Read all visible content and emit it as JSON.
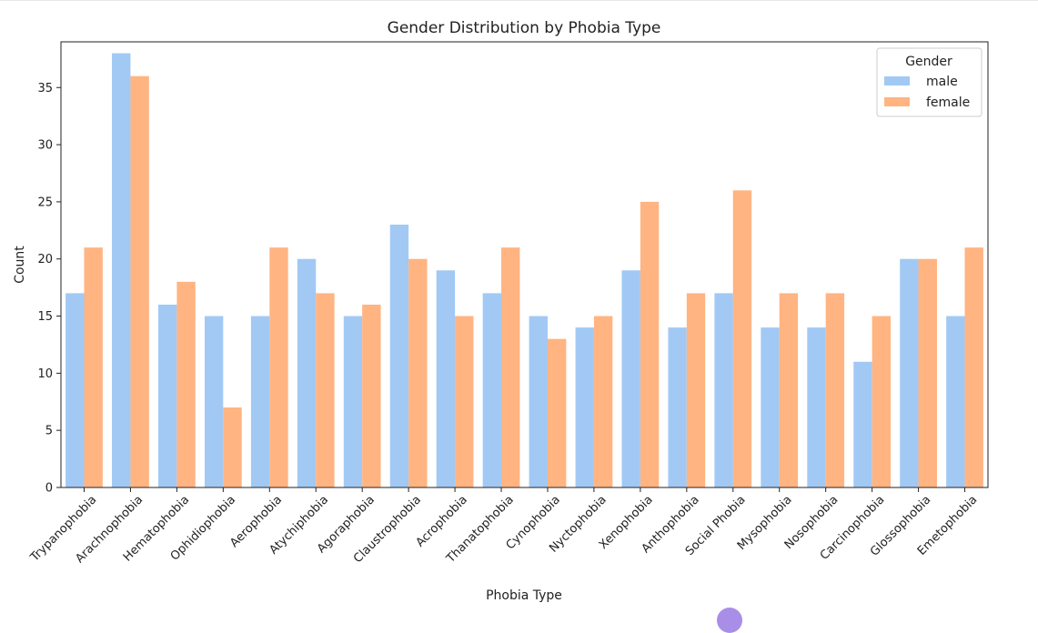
{
  "chart_data": {
    "type": "bar",
    "title": "Gender Distribution by Phobia Type",
    "xlabel": "Phobia Type",
    "ylabel": "Count",
    "ylim": [
      0,
      39
    ],
    "yticks": [
      0,
      5,
      10,
      15,
      20,
      25,
      30,
      35
    ],
    "grid": false,
    "legend": {
      "title": "Gender",
      "placement": "top-right"
    },
    "categories": [
      "Trypanophobia",
      "Arachnophobia",
      "Hematophobia",
      "Ophidiophobia",
      "Aerophobia",
      "Atychiphobia",
      "Agoraphobia",
      "Claustrophobia",
      "Acrophobia",
      "Thanatophobia",
      "Cynophobia",
      "Nyctophobia",
      "Xenophobia",
      "Anthophobia",
      "Social Phobia",
      "Mysophobia",
      "Nosophobia",
      "Carcinophobia",
      "Glossophobia",
      "Emetophobia"
    ],
    "series": [
      {
        "name": "male",
        "color": "#a1c9f4",
        "values": [
          17,
          38,
          16,
          15,
          15,
          20,
          15,
          23,
          19,
          17,
          15,
          14,
          19,
          14,
          17,
          14,
          14,
          11,
          20,
          15
        ]
      },
      {
        "name": "female",
        "color": "#ffb482",
        "values": [
          21,
          36,
          18,
          7,
          21,
          17,
          16,
          20,
          15,
          21,
          13,
          15,
          25,
          17,
          26,
          17,
          17,
          15,
          20,
          21
        ]
      }
    ]
  }
}
